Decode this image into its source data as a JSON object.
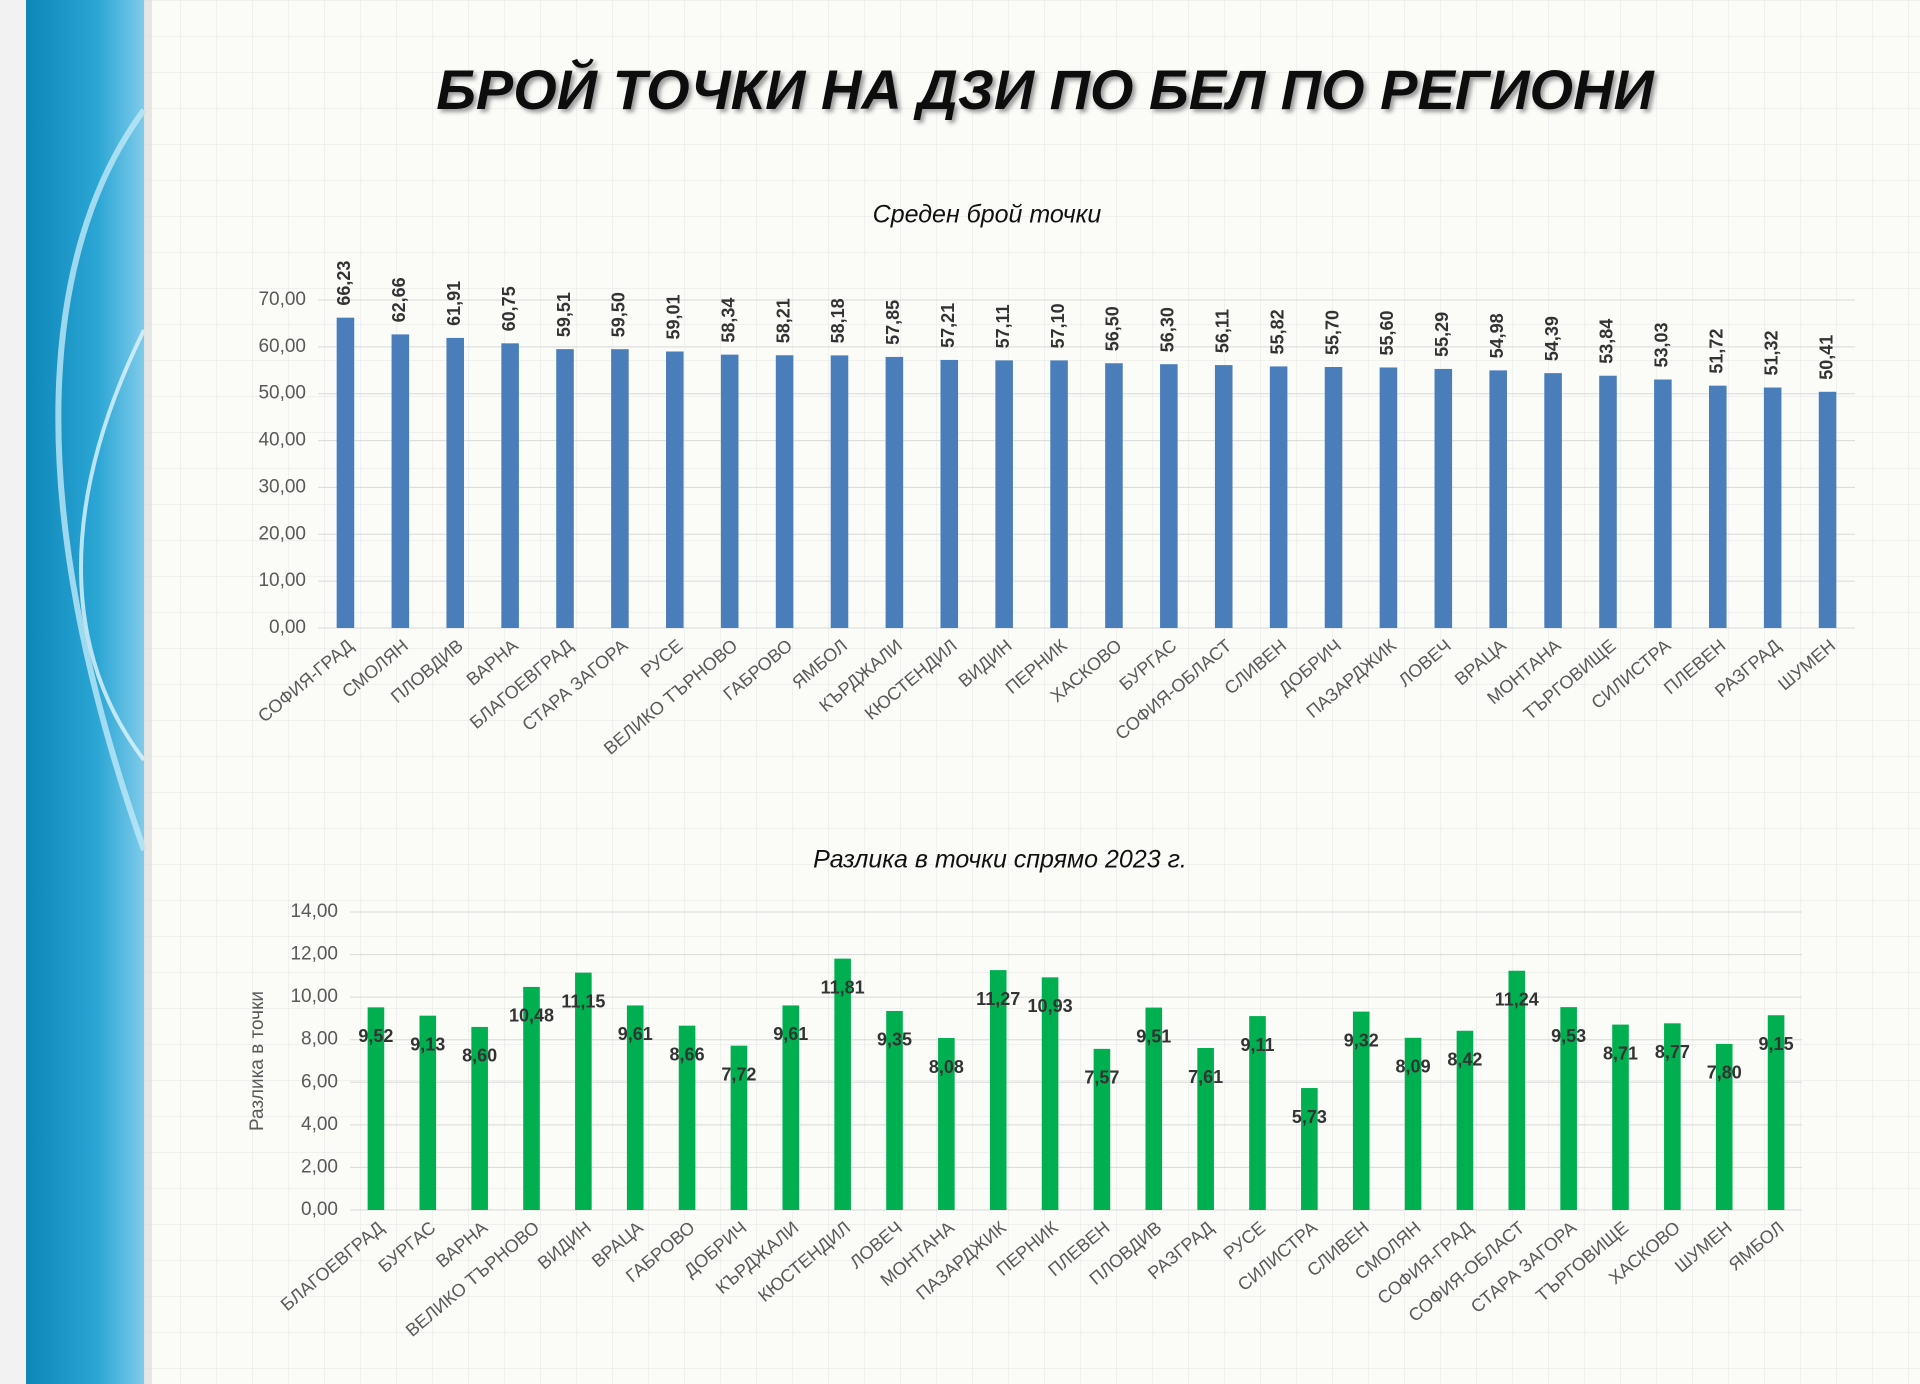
{
  "title": "БРОЙ ТОЧКИ НА ДЗИ ПО БЕЛ ПО РЕГИОНИ",
  "chart_data": [
    {
      "type": "bar",
      "title": "Среден брой точки",
      "color": "#4a7ebb",
      "grid": true,
      "categories": [
        "СОФИЯ-ГРАД",
        "СМОЛЯН",
        "ПЛОВДИВ",
        "ВАРНА",
        "БЛАГОЕВГРАД",
        "СТАРА ЗАГОРА",
        "РУСЕ",
        "ВЕЛИКО ТЪРНОВО",
        "ГАБРОВО",
        "ЯМБОЛ",
        "КЪРДЖАЛИ",
        "КЮСТЕНДИЛ",
        "ВИДИН",
        "ПЕРНИК",
        "ХАСКОВО",
        "БУРГАС",
        "СОФИЯ-ОБЛАСТ",
        "СЛИВЕН",
        "ДОБРИЧ",
        "ПАЗАРДЖИК",
        "ЛОВЕЧ",
        "ВРАЦА",
        "МОНТАНА",
        "ТЪРГОВИЩЕ",
        "СИЛИСТРА",
        "ПЛЕВЕН",
        "РАЗГРАД",
        "ШУМЕН"
      ],
      "values": [
        66.23,
        62.66,
        61.91,
        60.75,
        59.51,
        59.5,
        59.01,
        58.34,
        58.21,
        58.18,
        57.85,
        57.21,
        57.11,
        57.1,
        56.5,
        56.3,
        56.11,
        55.82,
        55.7,
        55.6,
        55.29,
        54.98,
        54.39,
        53.84,
        53.03,
        51.72,
        51.32,
        50.41
      ],
      "value_labels": [
        "66,23",
        "62,66",
        "61,91",
        "60,75",
        "59,51",
        "59,50",
        "59,01",
        "58,34",
        "58,21",
        "58,18",
        "57,85",
        "57,21",
        "57,11",
        "57,10",
        "56,50",
        "56,30",
        "56,11",
        "55,82",
        "55,70",
        "55,60",
        "55,29",
        "54,98",
        "54,39",
        "53,84",
        "53,03",
        "51,72",
        "51,32",
        "50,41"
      ],
      "ylim": [
        0,
        70
      ],
      "yticks": [
        {
          "value": 0,
          "label": "0,00"
        },
        {
          "value": 10,
          "label": "10,00"
        },
        {
          "value": 20,
          "label": "20,00"
        },
        {
          "value": 30,
          "label": "30,00"
        },
        {
          "value": 40,
          "label": "40,00"
        },
        {
          "value": 50,
          "label": "50,00"
        },
        {
          "value": 60,
          "label": "60,00"
        },
        {
          "value": 70,
          "label": "70,00"
        }
      ]
    },
    {
      "type": "bar",
      "title": "Разлика в точки спрямо 2023 г.",
      "y_label": "Разлика в точки",
      "color": "#00b050",
      "grid": true,
      "categories": [
        "БЛАГОЕВГРАД",
        "БУРГАС",
        "ВАРНА",
        "ВЕЛИКО ТЪРНОВО",
        "ВИДИН",
        "ВРАЦА",
        "ГАБРОВО",
        "ДОБРИЧ",
        "КЪРДЖАЛИ",
        "КЮСТЕНДИЛ",
        "ЛОВЕЧ",
        "МОНТАНА",
        "ПАЗАРДЖИК",
        "ПЕРНИК",
        "ПЛЕВЕН",
        "ПЛОВДИВ",
        "РАЗГРАД",
        "РУСЕ",
        "СИЛИСТРА",
        "СЛИВЕН",
        "СМОЛЯН",
        "СОФИЯ-ГРАД",
        "СОФИЯ-ОБЛАСТ",
        "СТАРА ЗАГОРА",
        "ТЪРГОВИЩЕ",
        "ХАСКОВО",
        "ШУМЕН",
        "ЯМБОЛ"
      ],
      "values": [
        9.52,
        9.13,
        8.6,
        10.48,
        11.15,
        9.61,
        8.66,
        7.72,
        9.61,
        11.81,
        9.35,
        8.08,
        11.27,
        10.93,
        7.57,
        9.51,
        7.61,
        9.11,
        5.73,
        9.32,
        8.09,
        8.42,
        11.24,
        9.53,
        8.71,
        8.77,
        7.8,
        9.15
      ],
      "value_labels": [
        "9,52",
        "9,13",
        "8,60",
        "10,48",
        "11,15",
        "9,61",
        "8,66",
        "7,72",
        "9,61",
        "11,81",
        "9,35",
        "8,08",
        "11,27",
        "10,93",
        "7,57",
        "9,51",
        "7,61",
        "9,11",
        "5,73",
        "9,32",
        "8,09",
        "8,42",
        "11,24",
        "9,53",
        "8,71",
        "8,77",
        "7,80",
        "9,15"
      ],
      "ylim": [
        0,
        14
      ],
      "yticks": [
        {
          "value": 0,
          "label": "0,00"
        },
        {
          "value": 2,
          "label": "2,00"
        },
        {
          "value": 4,
          "label": "4,00"
        },
        {
          "value": 6,
          "label": "6,00"
        },
        {
          "value": 8,
          "label": "8,00"
        },
        {
          "value": 10,
          "label": "10,00"
        },
        {
          "value": 12,
          "label": "12,00"
        },
        {
          "value": 14,
          "label": "14,00"
        }
      ]
    }
  ]
}
